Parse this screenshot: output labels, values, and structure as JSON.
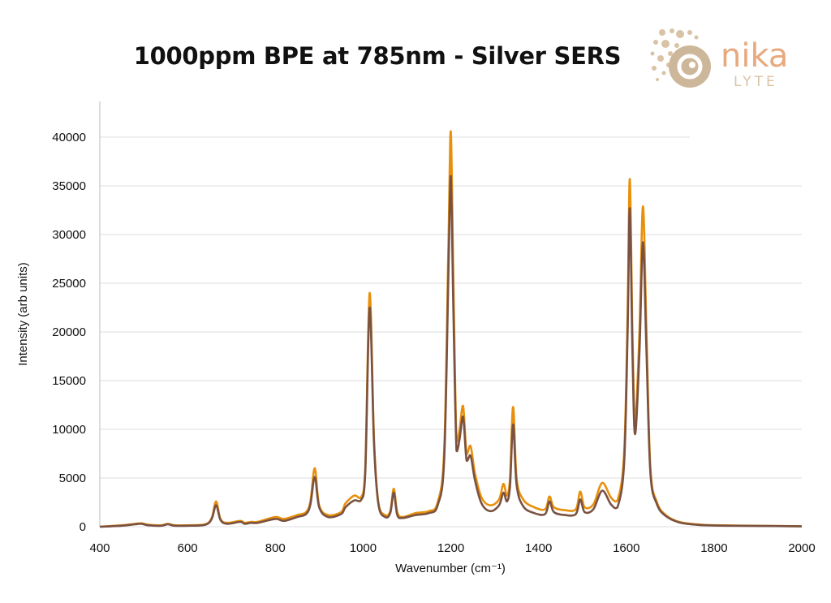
{
  "logo": {
    "word": "nika",
    "subword": "LYTE",
    "color": "#E8A97E"
  },
  "chart_data": {
    "type": "line",
    "title": "1000ppm BPE at 785nm - Silver SERS",
    "xlabel": "Wavenumber (cm⁻¹)",
    "ylabel": "Intensity (arb units)",
    "xlim": [
      400,
      2000
    ],
    "ylim": [
      0,
      40000
    ],
    "xticks": [
      400,
      600,
      800,
      1000,
      1200,
      1400,
      1600,
      1800,
      2000
    ],
    "yticks": [
      0,
      5000,
      10000,
      15000,
      20000,
      25000,
      30000,
      35000,
      40000
    ],
    "grid": "horizontal",
    "legend": "none",
    "x": [
      400,
      450,
      480,
      495,
      510,
      540,
      555,
      570,
      600,
      640,
      655,
      665,
      675,
      690,
      720,
      730,
      745,
      760,
      800,
      820,
      850,
      870,
      880,
      890,
      900,
      920,
      950,
      960,
      980,
      995,
      1005,
      1015,
      1025,
      1035,
      1050,
      1062,
      1070,
      1078,
      1090,
      1120,
      1150,
      1170,
      1185,
      1195,
      1200,
      1206,
      1213,
      1220,
      1228,
      1236,
      1245,
      1255,
      1270,
      1290,
      1310,
      1320,
      1328,
      1335,
      1342,
      1350,
      1365,
      1390,
      1415,
      1425,
      1435,
      1460,
      1485,
      1495,
      1505,
      1525,
      1545,
      1565,
      1580,
      1595,
      1603,
      1608,
      1614,
      1620,
      1630,
      1638,
      1646,
      1655,
      1670,
      1690,
      1720,
      1760,
      1800,
      1900,
      2000
    ],
    "series": [
      {
        "color": "#E8900C",
        "values": [
          0,
          150,
          300,
          350,
          200,
          150,
          300,
          150,
          150,
          250,
          900,
          2600,
          800,
          400,
          600,
          400,
          500,
          500,
          1000,
          800,
          1200,
          1500,
          2600,
          6000,
          2200,
          1200,
          1500,
          2400,
          3200,
          3000,
          6000,
          24000,
          9000,
          2500,
          1200,
          1600,
          3900,
          1500,
          1000,
          1400,
          1600,
          2500,
          8000,
          30000,
          40600,
          25000,
          8800,
          10000,
          12400,
          7500,
          8300,
          5500,
          3000,
          2200,
          2800,
          4400,
          3200,
          5000,
          12300,
          5000,
          2800,
          2000,
          1800,
          3100,
          2000,
          1700,
          1800,
          3600,
          2000,
          2300,
          4500,
          3000,
          2700,
          7500,
          22000,
          35700,
          20000,
          10900,
          20000,
          32900,
          20000,
          6000,
          2500,
          1200,
          500,
          250,
          150,
          100,
          50
        ]
      },
      {
        "color": "#7A5242",
        "values": [
          0,
          100,
          250,
          300,
          150,
          100,
          250,
          100,
          100,
          200,
          800,
          2200,
          700,
          300,
          500,
          300,
          400,
          400,
          800,
          600,
          1000,
          1300,
          2300,
          5100,
          2000,
          1000,
          1300,
          2000,
          2700,
          2700,
          5500,
          22500,
          8500,
          2300,
          1000,
          1400,
          3500,
          1200,
          900,
          1200,
          1400,
          2200,
          7000,
          27000,
          36000,
          22000,
          7800,
          9000,
          11300,
          6800,
          7300,
          4800,
          2400,
          1600,
          2200,
          3500,
          2600,
          4200,
          10500,
          4300,
          2100,
          1400,
          1300,
          2600,
          1500,
          1200,
          1300,
          2800,
          1500,
          1800,
          3700,
          2300,
          2000,
          6500,
          20000,
          32700,
          18000,
          9500,
          18000,
          29200,
          18000,
          5500,
          2300,
          1100,
          450,
          200,
          120,
          80,
          40
        ]
      }
    ]
  }
}
